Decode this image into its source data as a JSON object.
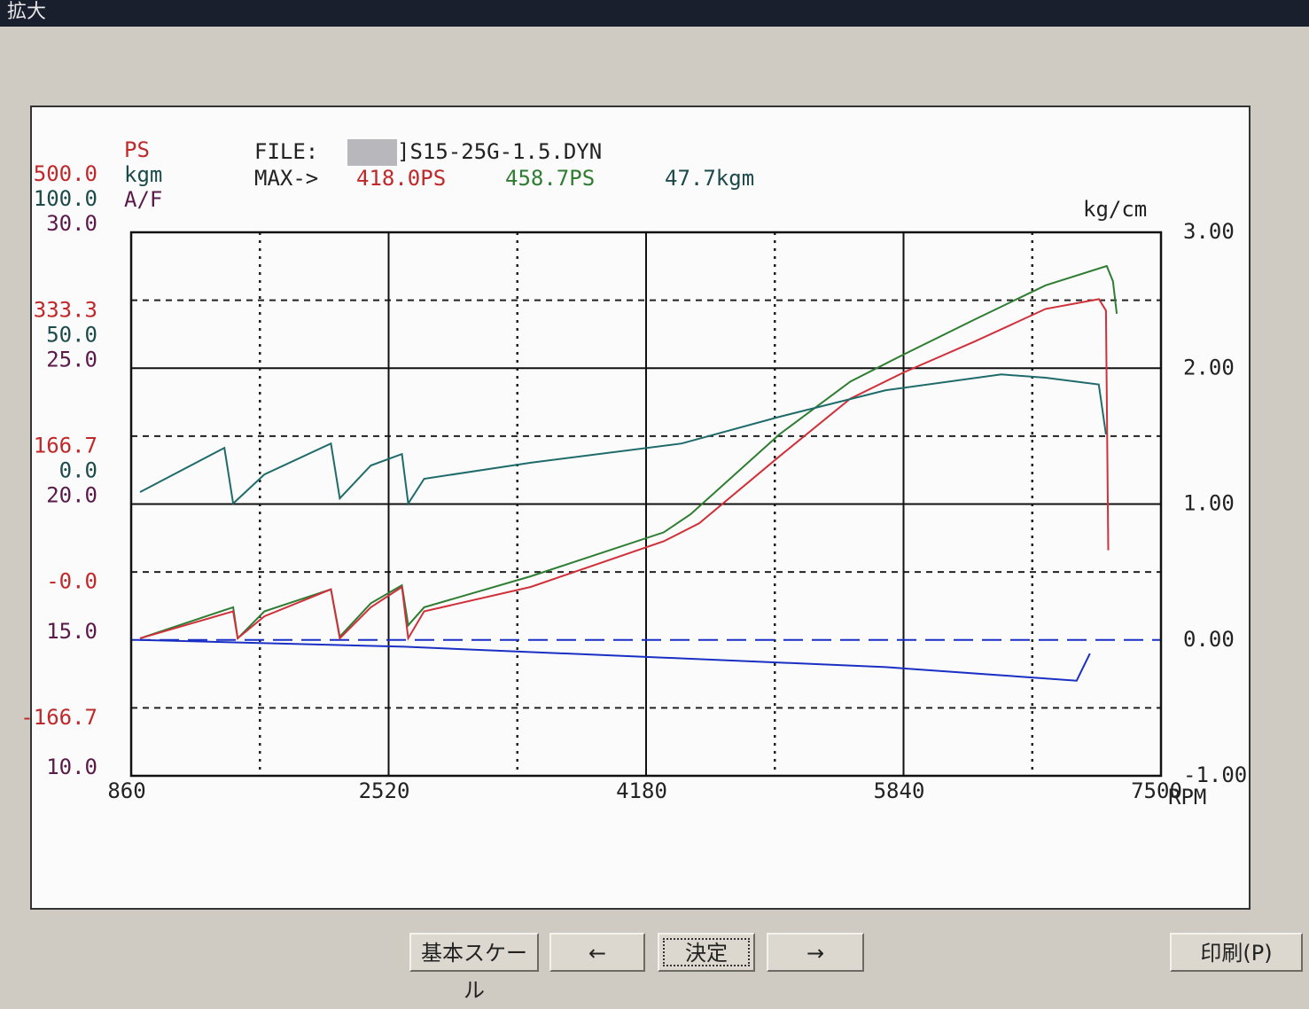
{
  "window": {
    "title": "拡大"
  },
  "chart_data": {
    "type": "line",
    "file_label": "FILE:",
    "file_name": "]S15-25G-1.5.DYN",
    "max_label": "MAX->",
    "max_values": [
      {
        "value": 418.0,
        "label": "418.0PS",
        "color": "#c0282a"
      },
      {
        "value": 458.7,
        "label": "458.7PS",
        "color": "#2e7d32"
      },
      {
        "value": 47.7,
        "label": "47.7kgm",
        "color": "#1d4a4a"
      }
    ],
    "xlabel": "RPM",
    "xlim": [
      860,
      7500
    ],
    "xticks": [
      860,
      2520,
      4180,
      5840,
      7500
    ],
    "axes": {
      "ps": {
        "label": "PS",
        "color": "#c0282a",
        "lim": [
          -166.7,
          500
        ],
        "ticks": [
          {
            "value": 500,
            "label": "500.0"
          },
          {
            "value": 333.3,
            "label": "333.3"
          },
          {
            "value": 166.7,
            "label": "166.7"
          },
          {
            "value": 0,
            "label": "-0.0"
          },
          {
            "value": -166.7,
            "label": "-166.7"
          }
        ]
      },
      "kgm": {
        "label": "kgm",
        "color": "#1d4a4a",
        "lim": [
          -100,
          100
        ],
        "ticks": [
          {
            "value": 100,
            "label": "100.0"
          },
          {
            "value": 50,
            "label": "50.0"
          },
          {
            "value": 0,
            "label": "0.0"
          }
        ]
      },
      "af": {
        "label": "A/F",
        "color": "#5a1a4a",
        "lim": [
          10,
          30
        ],
        "ticks": [
          {
            "value": 30,
            "label": "30.0"
          },
          {
            "value": 25,
            "label": "25.0"
          },
          {
            "value": 20,
            "label": "20.0"
          },
          {
            "value": 15,
            "label": "15.0"
          },
          {
            "value": 10,
            "label": "10.0"
          }
        ]
      },
      "boost": {
        "label": "kg/cm",
        "color": "#222222",
        "lim": [
          -1,
          3
        ],
        "ticks": [
          {
            "value": 3,
            "label": "3.00"
          },
          {
            "value": 2,
            "label": "2.00"
          },
          {
            "value": 1,
            "label": "1.00"
          },
          {
            "value": 0,
            "label": "0.00"
          },
          {
            "value": -1,
            "label": "-1.00"
          }
        ]
      }
    },
    "zero_line_color": "#1a2fc4",
    "series": [
      {
        "color": "#2e7d32",
        "axis": "ps",
        "x": [
          917,
          1518,
          1547,
          1719,
          2148,
          2205,
          2405,
          2606,
          2646,
          2749,
          3436,
          4294,
          4466,
          5039,
          5497,
          5840,
          6298,
          6756,
          7150,
          7190,
          7215
        ],
        "values": [
          2,
          40,
          2,
          35,
          62,
          4,
          45,
          67,
          18,
          40,
          78,
          132,
          154,
          252,
          317,
          350,
          393,
          435,
          458.7,
          440,
          400
        ]
      },
      {
        "color": "#d0303a",
        "axis": "ps",
        "x": [
          917,
          1518,
          1547,
          1719,
          2148,
          2205,
          2405,
          2606,
          2646,
          2749,
          3436,
          4294,
          4523,
          5039,
          5497,
          5840,
          6298,
          6756,
          7100,
          7145,
          7160
        ],
        "values": [
          2,
          35,
          2,
          29,
          62,
          2,
          40,
          65,
          2,
          35,
          65,
          121,
          143,
          225,
          296,
          328,
          366,
          406,
          418.0,
          404,
          110
        ]
      },
      {
        "color": "#1f6b6b",
        "axis": "kgm",
        "x": [
          917,
          1461,
          1518,
          1719,
          2148,
          2205,
          2405,
          2606,
          2646,
          2749,
          3436,
          4409,
          5039,
          5725,
          6470,
          6756,
          7099,
          7145
        ],
        "values": [
          4.4,
          20.7,
          0.2,
          10.9,
          22.3,
          2.1,
          14.2,
          18.4,
          0.2,
          9.3,
          15.2,
          22.3,
          32.1,
          41.9,
          47.7,
          46.5,
          44,
          25.6
        ]
      },
      {
        "color": "#1a2fc4",
        "axis": "boost",
        "x": [
          917,
          2620,
          4294,
          5725,
          6956,
          7042
        ],
        "values": [
          0,
          -0.05,
          -0.13,
          -0.2,
          -0.3,
          -0.1
        ]
      }
    ]
  },
  "buttons": [
    "基本スケール",
    "←",
    "決定",
    "→",
    "印刷(P)"
  ]
}
